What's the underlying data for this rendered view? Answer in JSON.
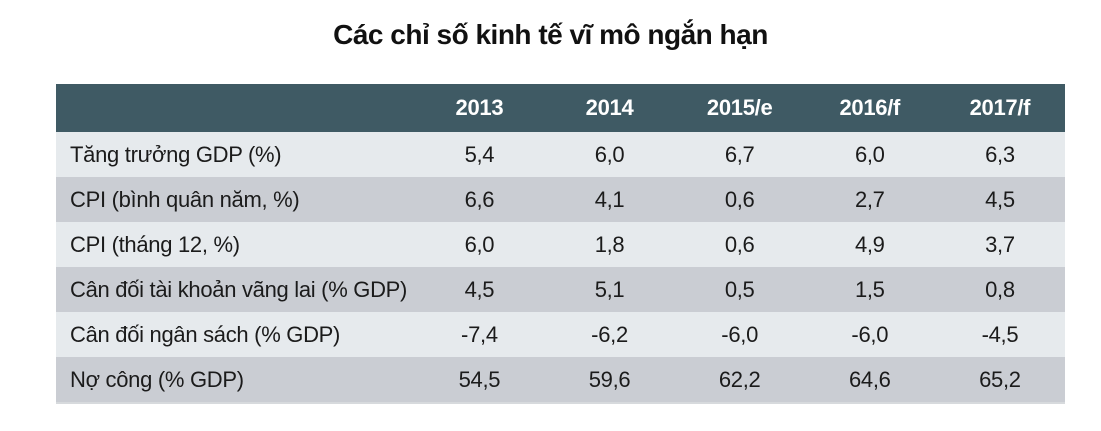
{
  "title": "Các chỉ số kinh tế vĩ mô ngắn hạn",
  "colors": {
    "header_bg": "#3f5a64",
    "header_text": "#ffffff",
    "row_light": "#e6eaed",
    "row_shaded": "#cacdd3",
    "text": "#1b1b1b"
  },
  "chart_data": {
    "type": "table",
    "title": "Các chỉ số kinh tế vĩ mô ngắn hạn",
    "columns": [
      "",
      "2013",
      "2014",
      "2015/e",
      "2016/f",
      "2017/f"
    ],
    "rows": [
      {
        "label": "Tăng trưởng GDP (%)",
        "values": [
          "5,4",
          "6,0",
          "6,7",
          "6,0",
          "6,3"
        ]
      },
      {
        "label": "CPI (bình quân năm, %)",
        "values": [
          "6,6",
          "4,1",
          "0,6",
          "2,7",
          "4,5"
        ]
      },
      {
        "label": "CPI (tháng 12, %)",
        "values": [
          "6,0",
          "1,8",
          "0,6",
          "4,9",
          "3,7"
        ]
      },
      {
        "label": "Cân đối tài khoản vãng lai (% GDP)",
        "values": [
          "4,5",
          "5,1",
          "0,5",
          "1,5",
          "0,8"
        ]
      },
      {
        "label": "Cân đối ngân sách (% GDP)",
        "values": [
          "-7,4",
          "-6,2",
          "-6,0",
          "-6,0",
          "-4,5"
        ]
      },
      {
        "label": "Nợ công (% GDP)",
        "values": [
          "54,5",
          "59,6",
          "62,2",
          "64,6",
          "65,2"
        ]
      }
    ]
  }
}
